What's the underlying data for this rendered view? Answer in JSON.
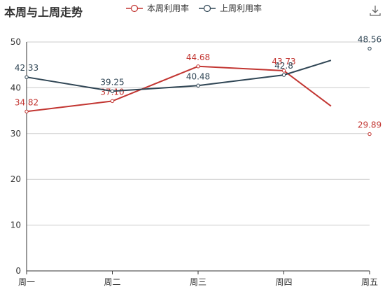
{
  "title": "本周与上周走势",
  "toolbox": {
    "download_icon": "download-icon"
  },
  "colors": {
    "this_week": "#c23531",
    "last_week": "#2f4554",
    "grid": "#cccccc",
    "axis": "#333333",
    "tick_text": "#333333"
  },
  "chart_data": {
    "type": "line",
    "categories": [
      "周一",
      "周二",
      "周三",
      "周四",
      "周五"
    ],
    "ylim": [
      0,
      50
    ],
    "yticks": [
      0,
      10,
      20,
      30,
      40,
      50
    ],
    "grid": "horizontal",
    "legend_position": "top-center",
    "series": [
      {
        "name": "本周利用率",
        "color": "#c23531",
        "points": [
          {
            "x": 0,
            "y": 34.82,
            "label": "34.82",
            "marker": true
          },
          {
            "x": 1,
            "y": 37.1,
            "label": "37.10",
            "marker": true
          },
          {
            "x": 2,
            "y": 44.68,
            "label": "44.68",
            "marker": true
          },
          {
            "x": 3,
            "y": 43.73,
            "label": "43.73",
            "marker": true
          },
          {
            "x": 3.55,
            "y": 36.0,
            "label": null,
            "marker": false,
            "line_end": true
          },
          {
            "x": 4,
            "y": 29.89,
            "label": "29.89",
            "marker": true,
            "connected": false
          }
        ]
      },
      {
        "name": "上周利用率",
        "color": "#2f4554",
        "points": [
          {
            "x": 0,
            "y": 42.33,
            "label": "42.33",
            "marker": true
          },
          {
            "x": 1,
            "y": 39.25,
            "label": "39.25",
            "marker": true
          },
          {
            "x": 2,
            "y": 40.48,
            "label": "40.48",
            "marker": true
          },
          {
            "x": 3,
            "y": 42.8,
            "label": "42.8",
            "marker": true
          },
          {
            "x": 3.55,
            "y": 46.0,
            "label": null,
            "marker": false,
            "line_end": true
          },
          {
            "x": 4,
            "y": 48.56,
            "label": "48.56",
            "marker": true,
            "connected": false
          }
        ]
      }
    ]
  }
}
